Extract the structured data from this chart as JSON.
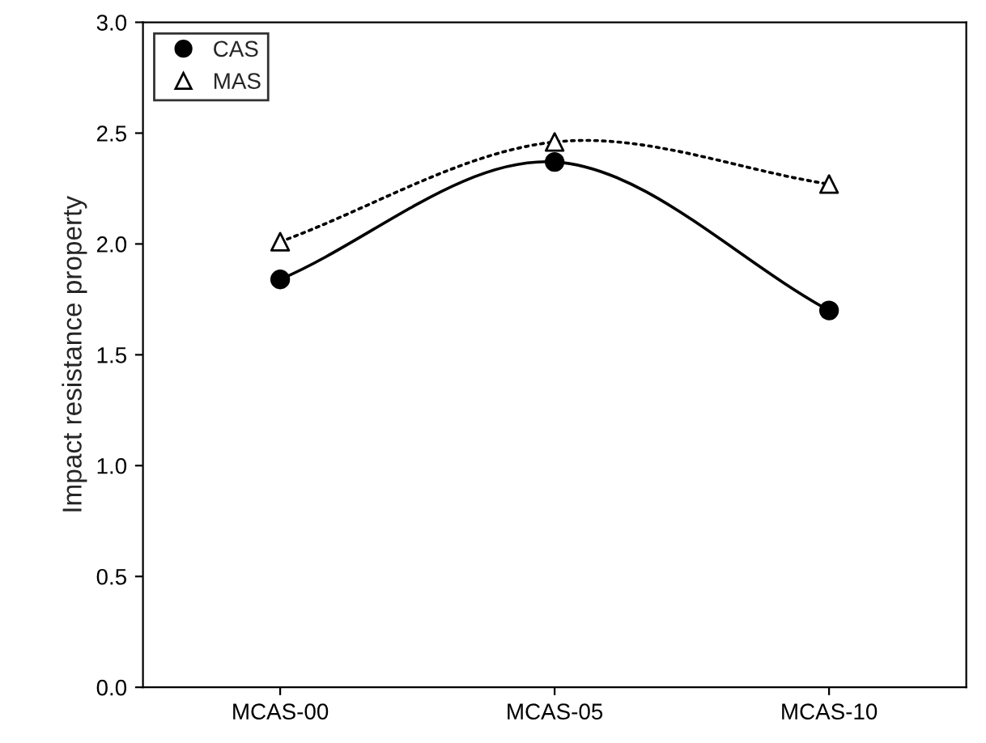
{
  "chart_data": {
    "type": "line",
    "ylabel": "Impact resistance property",
    "categories": [
      "MCAS-00",
      "MCAS-05",
      "MCAS-10"
    ],
    "series": [
      {
        "name": "CAS",
        "color": "#000000",
        "values": [
          1.84,
          2.37,
          1.7
        ],
        "marker": "circle",
        "line_style": "solid"
      },
      {
        "name": "MAS",
        "color": "#000000",
        "values": [
          2.01,
          2.46,
          2.27
        ],
        "marker": "triangle",
        "line_style": "dotted"
      }
    ],
    "ylim": [
      0,
      3
    ],
    "yticks": [
      {
        "value": 0,
        "label": "0.0"
      },
      {
        "value": 0.5,
        "label": "0.5"
      },
      {
        "value": 1,
        "label": "1.0"
      },
      {
        "value": 1.5,
        "label": "1.5"
      },
      {
        "value": 2,
        "label": "2.0"
      },
      {
        "value": 2.5,
        "label": "2.5"
      },
      {
        "value": 3,
        "label": "3.0"
      }
    ],
    "legend": "top left",
    "grid": false
  }
}
